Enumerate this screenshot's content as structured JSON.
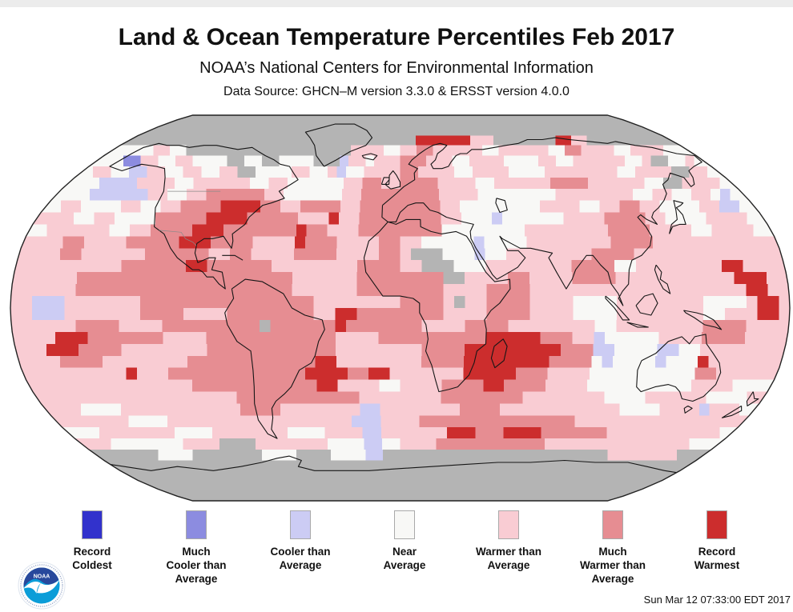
{
  "header": {
    "title": "Land & Ocean Temperature Percentiles Feb 2017",
    "subtitle": "NOAA’s National Centers for Environmental Information",
    "data_source": "Data Source: GHCN–M version 3.3.0 & ERSST version 4.0.0"
  },
  "legend": {
    "items": [
      {
        "key": "C",
        "label": "Record\nColdest",
        "color": "#3232cc"
      },
      {
        "key": "M",
        "label": "Much\nCooler than\nAverage",
        "color": "#8c8ce0"
      },
      {
        "key": "c",
        "label": "Cooler than\nAverage",
        "color": "#ccccf4"
      },
      {
        "key": "n",
        "label": "Near\nAverage",
        "color": "#f8f8f6"
      },
      {
        "key": "w",
        "label": "Warmer than\nAverage",
        "color": "#f9ccd3"
      },
      {
        "key": "W",
        "label": "Much\nWarmer than\nAverage",
        "color": "#e68d92"
      },
      {
        "key": "R",
        "label": "Record\nWarmest",
        "color": "#cc2d2d"
      }
    ]
  },
  "footer": {
    "timestamp": "Sun Mar 12 07:33:00 EDT 2017",
    "logo_text": "NOAA"
  },
  "chart_data": {
    "type": "heatmap",
    "projection": "robinson",
    "title": "Land & Ocean Temperature Percentiles Feb 2017",
    "cell_degrees": 5,
    "columns": 72,
    "rows": 36,
    "lon_range": [
      -180,
      180
    ],
    "lat_range": [
      90,
      -90
    ],
    "categories": {
      "g": "no data",
      "C": "record coldest",
      "M": "much cooler than average",
      "c": "cooler than average",
      "n": "near average",
      "w": "warmer than average",
      "W": "much warmer than average",
      "R": "record warmest"
    },
    "palette": {
      "g": "#b4b4b4",
      "C": "#3232cc",
      "M": "#8c8ce0",
      "c": "#ccccf4",
      "n": "#f8f8f6",
      "w": "#f9ccd3",
      "W": "#e68d92",
      "R": "#cc2d2d"
    },
    "grid_rows_90N_to_90S": [
      "gggggggggggggggggggggggggggggggggggggggggggggggggggggggggggggggggggggg",
      "gggggggggggggggggggggggggggggggggggggggggggggggggggggggggggggggggggggg",
      "gggggggggggggggggggggggggggggggggggggggggggggggggggggggggggggggggggggg",
      "ggggggggggggggggggggggggggggggggggggggRRRRRRRwwwggggggggRRwwgggggggggggg",
      "nnnnnnwwnnggggggggggggggggggggwwwwnnwwWWwwwwwwnnwwwwwwnnWWwwwwnnwwwwnnnn",
      "nnnnMMwwnnwwnnnnggnnggnnnngggcwwnwwwWWWwwwnnwwwwnnnnwwnnwwwwwwnnwggnnwnn",
      "nnwwnnccwwnnwwnnwwggnnnnwwnnwcnnwwwwWWwwwwnnwwwwnnnnwwwwwwwwnnwwwwggwwnn",
      "nnnnccccwwwwnnwwwwwwnnwwnnnnnnwwWWwwWWWWwwwwnnwwwwwwWWWWwwwwwwnnggwwwwnn",
      "nnnnccccccwwnnwwWWWWWWwwnnnnnnwwWWWWWWWWwwwwnnnnnnnnwwwwwwwwnnwwnnwwncnn",
      "nnwwnnnnwwnnwwWWWWRRRRWWwwWWWWwwWWWWWWWWwwnnnnnnnnwwwwnnwwWWwwnnnnwwccnn",
      "wwwwnnwwnnnnWWWWWRRRRWWWWWwwwRwwWWWWWWWWwwnnncnnnnnnwwwwWWWWwwnnnnwwwwnn",
      "nnwwwwwwnnwwWWWWRRRWWWWWWWRWWwwwWWWWWWWWnnnnnnnnwwwwwwwwWWWWwwwwnnwwwwnn",
      "wwwwWWwwwwWWWWWRRRWWWWwwwwRWWWwwwwWWwwnnnnncnnnnwwwwwwwwWWWWwwwwwwwwwwww",
      "wwwwWWwwwwwwWWWWWWwwWWwwwwWWWWwwwwWWwgggnnncnnwwwwwwwwWWWWwwwwwwwwwwwwww",
      "wwwwwwwwwwWWWWWWRRWWWWWWwwwwwwwwWWWWwwgggnnnwwwwwwwwWWWWnnwwwwwwwwRRwwww",
      "wwwwwwWWWWWWWWWWWWWWWWWWWWwwwwwwWWWWWWWWggwwwwWWwwwwWWWWwwwwwwwwwwwRRRww",
      "wwwwwwWWWWWWWWWWWWWWWWWWWWwwwwwwWWWWWWWWwwwwWWWWwwwwwwwwwwwwwwwwwwwwRRww",
      "wwcccwwwwwwwWWWWWWWWWWWWWWWWwwwwwwwwWWWWwgwwWWWWwwwwnnnnwwwwwwwwnnnnwRRw",
      "wwcccwwwwwwwWWWWwwwwWWWWWWWWwwRRWWWWWWWWwwwwWWWWwwwwnnnnwwwwwwwwnnwwwRRw",
      "wwwwwwWWWWwwwwWWWWWWWWWgWWWWWWRWWWWWWWwwwwWWWWwwwwwwwwnnwwwwwwwwWWWWwwww",
      "wwwwRRRWWWWWWWwwwwWWWWWWWWWWWWwwwwWWWWWWWWWWRRRRRWWWwwcnnnnnwwwwWWWWwwww",
      "wwwRRRWWWWwwwwwwwwWWWWWWWWWWWWwwwwwwwwWWWWRRRRRRRRRWWWccnnnnccnnwwwwwwww",
      "wwwwWWWWwwwwwwwwWWWWWWWWWWWWRRwwwwwwwwWWWWRRRRRRRRWWWWncnnnncnnnRwwwwwww",
      "wwwwwwwwwwRwwwWWWWWWWWWWWWWRRRRWWRRwwwwwwwRRRRRWWWwwwwnnnnnnnnnnWWwwwwww",
      "wwwwwwwwwwwwwwwwWWWWWWWWWWWWRRwwwwnnwwwwWWWWRRWWWWwwwwnnnnnnnnnnwwwwnnnn",
      "wwwwwwwwwwwwwwwwwwwwWWWWWWWWWWWWwwwwwwwwWWWWWWWWwwwwwwwwnnnnwwwwwwnnnnww",
      "wwwwnnnnwwwwwwwwwwwwWWWWwwwwwwwwccwwwwwwwwWWWWwwwwwwwwwwwwnnnnwwwwcwwwnn",
      "wwwwwwwwnnnnwwwwwwwwwwwwwwwwwwwcccwwwwWWWWWWWWWWWWWWWWwwwwwwwwwwwwwwwwww",
      "nnnnwwwwwwwwnnnnwwwwwwwwnnnnwwwwccwwwwwwwRRRWWWRRRRWWWWWWWwwwwwwwwwwwwnn",
      "wwwwnnnnnnnnwwwwggggwwwwwwwwnnnnccnnwwwwWWWWWWWWWWWWwwwwwwwwwwwwwwwwnnnn",
      "ggggggggnnnnggggggggnnnnggggnnnnccggggggggggggggggggggggggggwwwwwwwwgggg",
      "gggggggggggggggggggggggggggggggggggggggggggggggggggggggggggggggggggggg",
      "gggggggggggggggggggggggggggggggggggggggggggggggggggggggggggggggggggggg",
      "gggggggggggggggggggggggggggggggggggggggggggggggggggggggggggggggggggggg",
      "gggggggggggggggggggggggggggggggggggggggggggggggggggggggggggggggggggggg",
      "gggggggggggggggggggggggggggggggggggggggggggggggggggggggggggggggggggggg"
    ]
  }
}
